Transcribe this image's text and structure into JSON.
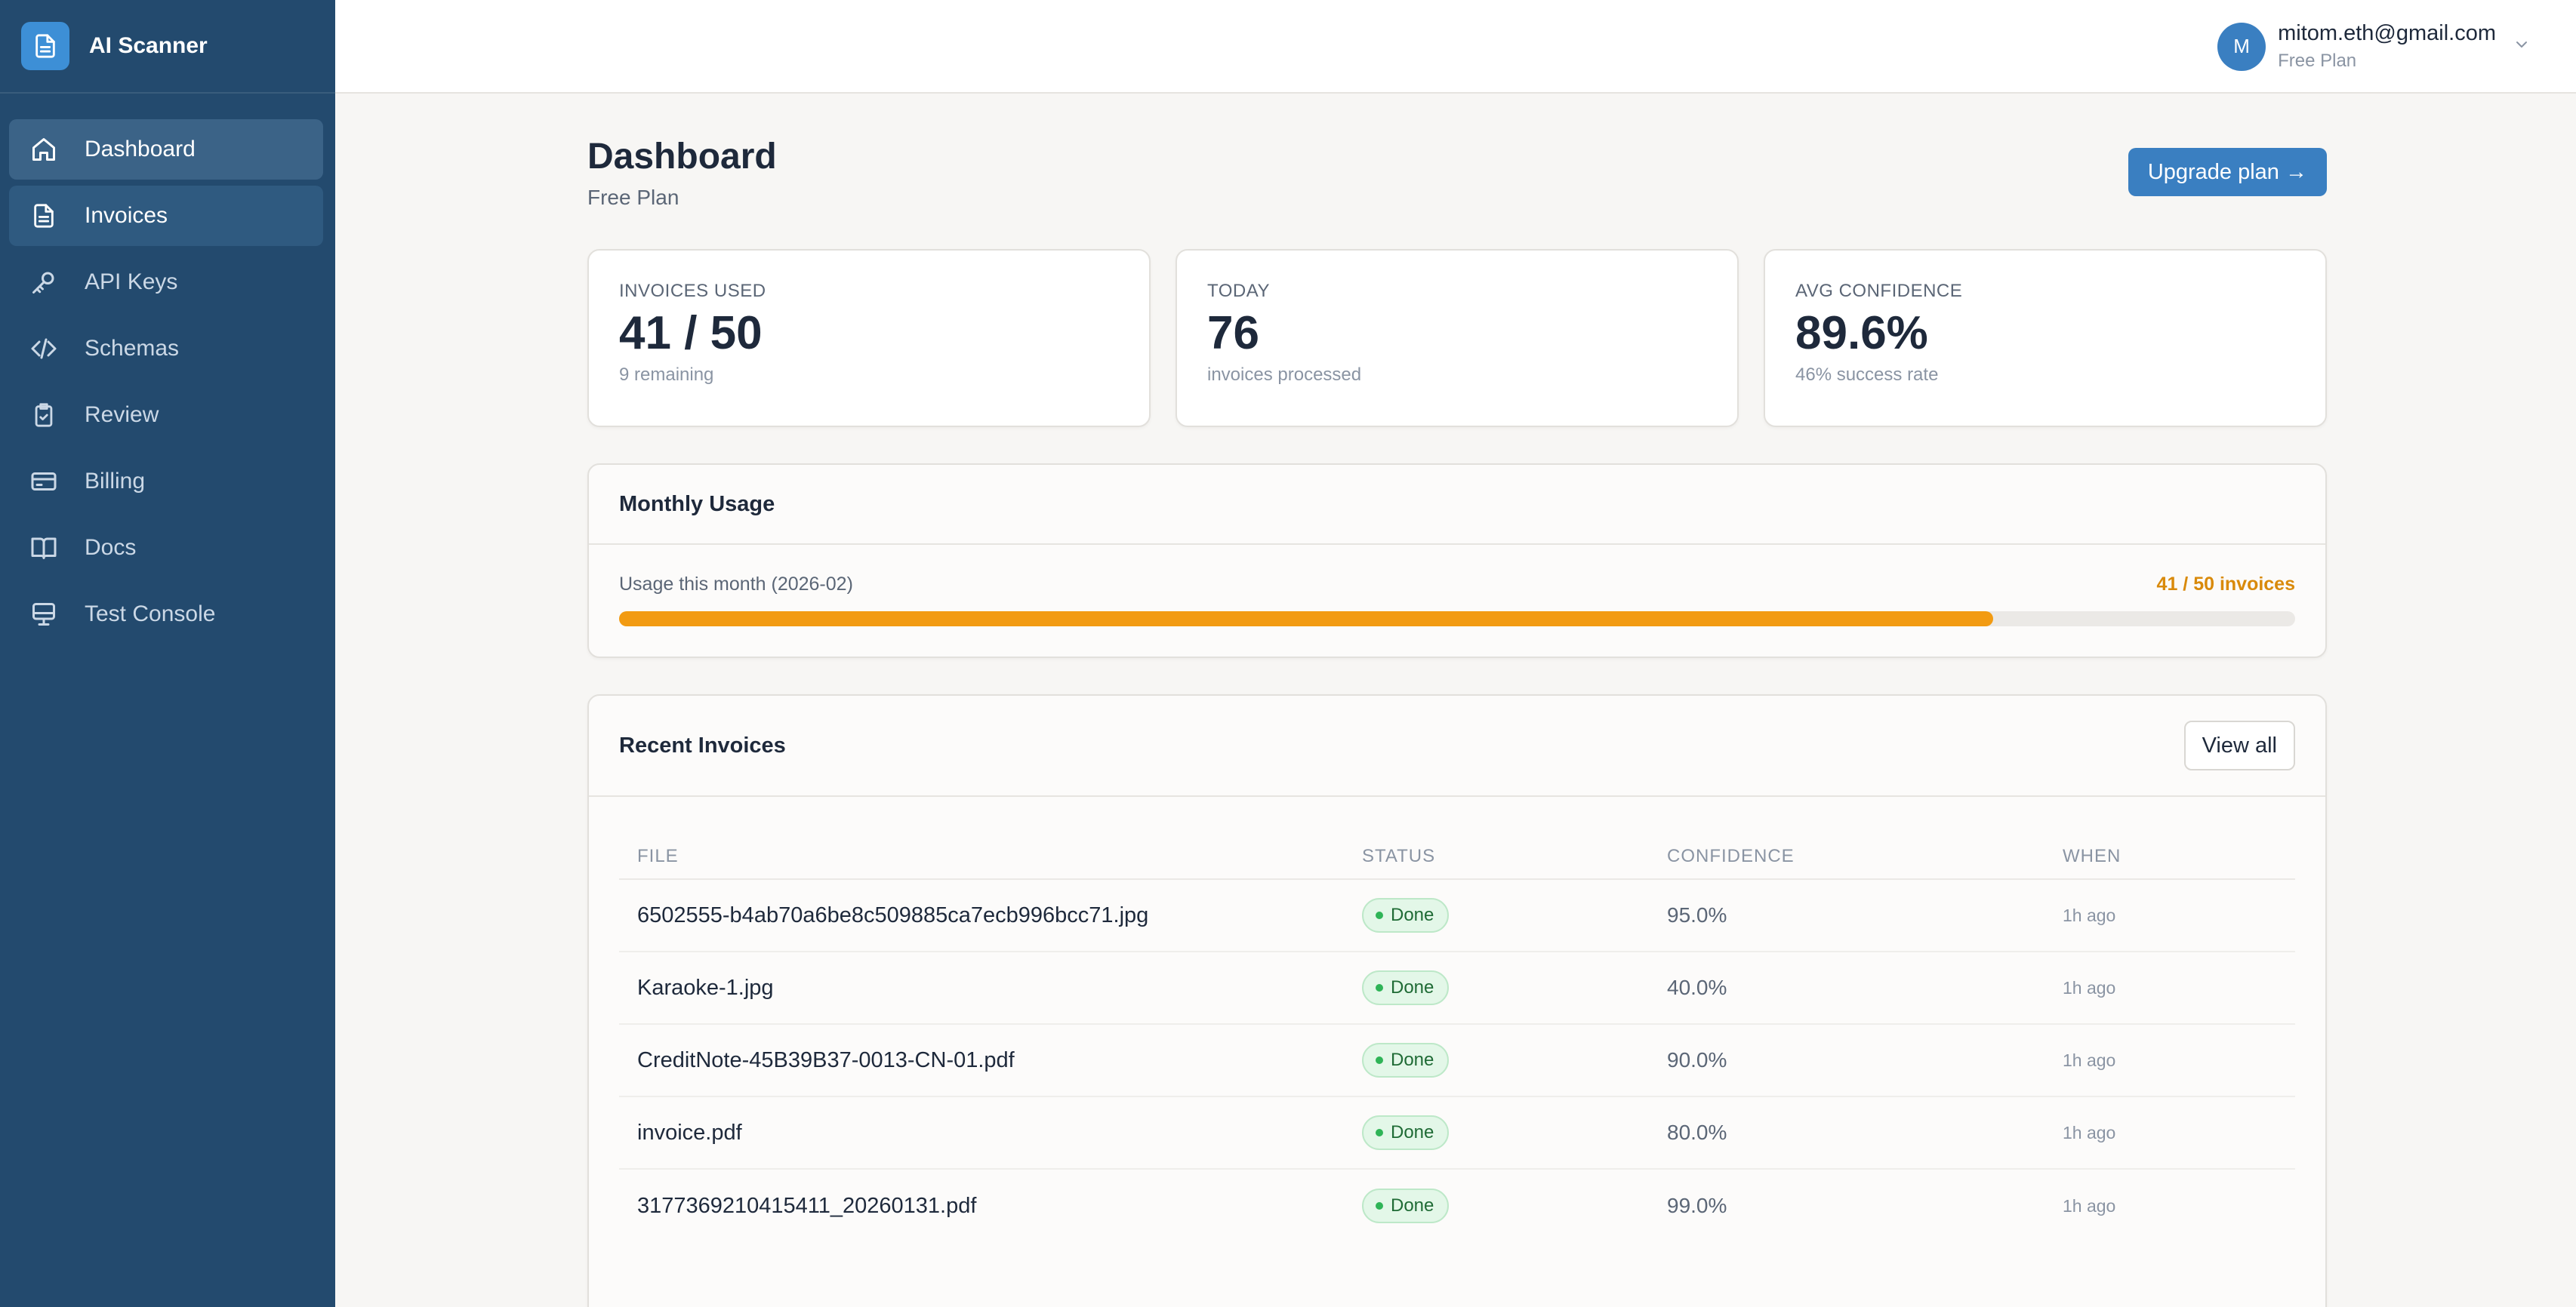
{
  "app": {
    "name": "AI Scanner"
  },
  "sidebar": {
    "items": [
      {
        "label": "Dashboard",
        "icon": "home-icon"
      },
      {
        "label": "Invoices",
        "icon": "document-icon"
      },
      {
        "label": "API Keys",
        "icon": "key-icon"
      },
      {
        "label": "Schemas",
        "icon": "code-icon"
      },
      {
        "label": "Review",
        "icon": "clipboard-check-icon"
      },
      {
        "label": "Billing",
        "icon": "credit-card-icon"
      },
      {
        "label": "Docs",
        "icon": "book-icon"
      },
      {
        "label": "Test Console",
        "icon": "monitor-icon"
      }
    ]
  },
  "account": {
    "avatar_initial": "M",
    "email": "mitom.eth@gmail.com",
    "plan": "Free Plan"
  },
  "header": {
    "title": "Dashboard",
    "subtitle": "Free Plan",
    "upgrade_label": "Upgrade plan →"
  },
  "stats": [
    {
      "label": "INVOICES USED",
      "value": "41 / 50",
      "sub": "9 remaining"
    },
    {
      "label": "TODAY",
      "value": "76",
      "sub": "invoices processed"
    },
    {
      "label": "AVG CONFIDENCE",
      "value": "89.6%",
      "sub": "46% success rate"
    }
  ],
  "usage": {
    "title": "Monthly Usage",
    "label": "Usage this month (2026-02)",
    "count": "41 / 50 invoices",
    "used": 41,
    "limit": 50
  },
  "recent": {
    "title": "Recent Invoices",
    "view_all_label": "View all",
    "columns": [
      "FILE",
      "STATUS",
      "CONFIDENCE",
      "WHEN"
    ],
    "rows": [
      {
        "file": "6502555-b4ab70a6be8c509885ca7ecb996bcc71.jpg",
        "status": "Done",
        "confidence": "95.0%",
        "when": "1h ago"
      },
      {
        "file": "Karaoke-1.jpg",
        "status": "Done",
        "confidence": "40.0%",
        "when": "1h ago"
      },
      {
        "file": "CreditNote-45B39B37-0013-CN-01.pdf",
        "status": "Done",
        "confidence": "90.0%",
        "when": "1h ago"
      },
      {
        "file": "invoice.pdf",
        "status": "Done",
        "confidence": "80.0%",
        "when": "1h ago"
      },
      {
        "file": "3177369210415411_20260131.pdf",
        "status": "Done",
        "confidence": "99.0%",
        "when": "1h ago"
      }
    ]
  },
  "colors": {
    "sidebar": "#234a6e",
    "accent": "#3a7fc1",
    "progress": "#f29b12",
    "success": "#2fb457"
  }
}
